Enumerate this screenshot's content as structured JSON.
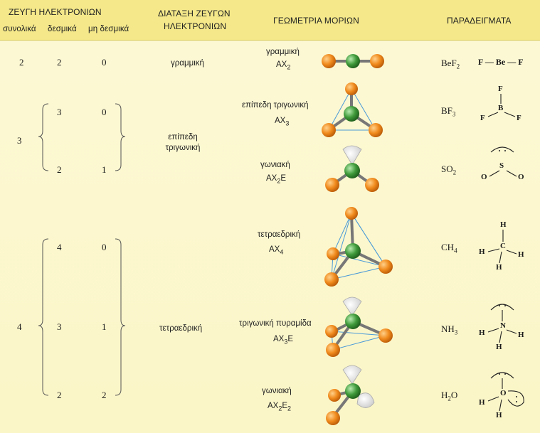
{
  "headers": {
    "pairs": "ΖΕΥΓΗ ΗΛΕΚΤΡΟΝΙΩΝ",
    "total": "συνολικά",
    "bonding": "δεσμικά",
    "nonbonding": "μη δεσμικά",
    "arrangement_line1": "ΔΙΑΤΑΞΗ ΖΕΥΓΩΝ",
    "arrangement_line2": "ΗΛΕΚΤΡΟΝΙΩΝ",
    "geometry": "ΓΕΩΜΕΤΡΙΑ ΜΟΡΙΩΝ",
    "examples": "ΠΑΡΑΔΕΙΓΜΑΤΑ"
  },
  "rows": [
    {
      "total": "2",
      "bonding": "2",
      "nonbonding": "0",
      "arrangement": "γραμμική",
      "geometry": "γραμμική",
      "formula_base": "AX",
      "formula_sub": "2",
      "formula_tail": "",
      "example_base": "BeF",
      "example_sub": "2"
    },
    {
      "total": "3",
      "bonding": "3",
      "nonbonding": "0",
      "arrangement": "επίπεδη τριγωνική",
      "geometry": "επίπεδη τριγωνική",
      "formula_base": "AX",
      "formula_sub": "3",
      "formula_tail": "",
      "example_base": "BF",
      "example_sub": "3"
    },
    {
      "bonding": "2",
      "nonbonding": "1",
      "geometry": "γωνιακή",
      "formula_base": "AX",
      "formula_sub": "2",
      "formula_tail": "E",
      "example_base": "SO",
      "example_sub": "2"
    },
    {
      "total": "4",
      "bonding": "4",
      "nonbonding": "0",
      "arrangement": "τετραεδρική",
      "geometry": "τετραεδρική",
      "formula_base": "AX",
      "formula_sub": "4",
      "formula_tail": "",
      "example_base": "CH",
      "example_sub": "4"
    },
    {
      "bonding": "3",
      "nonbonding": "1",
      "geometry": "τριγωνική πυραμίδα",
      "formula_base": "AX",
      "formula_sub": "3",
      "formula_tail": "E",
      "example_base": "NH",
      "example_sub": "3"
    },
    {
      "bonding": "2",
      "nonbonding": "2",
      "geometry": "γωνιακή",
      "formula_base": "AX",
      "formula_sub": "2",
      "formula_tail": "E",
      "formula_tail_sub": "2",
      "example_base": "H",
      "example_sub": "2",
      "example_tail": "O"
    }
  ],
  "lewis": {
    "bef2": "F — Be — F",
    "bf3": {
      "center": "B",
      "ligand": "F"
    },
    "so2": {
      "center": "S",
      "ligand": "O"
    },
    "ch4": {
      "center": "C",
      "ligand": "H"
    },
    "nh3": {
      "center": "N",
      "ligand": "H"
    },
    "h2o": {
      "center": "O",
      "ligand": "H"
    }
  },
  "colors": {
    "header_bg": "#f4e88a",
    "body_bg": "#fbf7cf",
    "ligand_atom": "#f08a1c",
    "central_atom": "#3f9a3a",
    "lone_pair": "#f2f2f2",
    "edge_line": "#4a9ad8"
  }
}
